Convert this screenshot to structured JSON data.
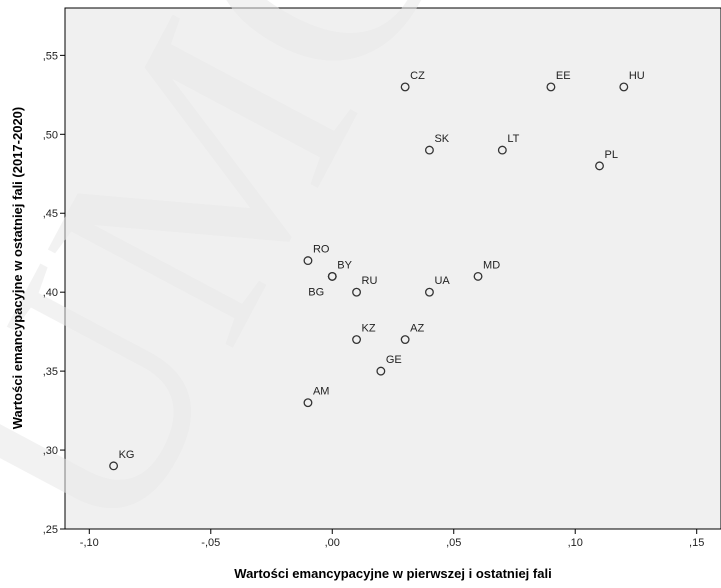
{
  "chart_data": {
    "type": "scatter",
    "xlabel": "Wartości emancypacyjne w pierwszej i ostatniej fali",
    "ylabel": "Wartości emancypacyjne w ostatniej fali (2017-2020)",
    "xlim": [
      -0.11,
      0.16
    ],
    "ylim": [
      0.25,
      0.58
    ],
    "x_ticks": [
      -0.1,
      -0.05,
      0.0,
      0.05,
      0.1,
      0.15
    ],
    "x_tick_labels": [
      "-,10",
      "-,05",
      ",00",
      ",05",
      ",10",
      ",15"
    ],
    "y_ticks": [
      0.25,
      0.3,
      0.35,
      0.4,
      0.45,
      0.5,
      0.55
    ],
    "y_tick_labels": [
      ",25",
      ",30",
      ",35",
      ",40",
      ",45",
      ",50",
      ",55"
    ],
    "grid": false,
    "background_color": "#f0f0f0",
    "marker_color": "#333333",
    "watermark_text": "UMCS",
    "points": [
      {
        "label": "KG",
        "x": -0.09,
        "y": 0.29
      },
      {
        "label": "AM",
        "x": -0.01,
        "y": 0.33
      },
      {
        "label": "RO",
        "x": -0.01,
        "y": 0.42
      },
      {
        "label": "BY",
        "x": 0.0,
        "y": 0.41
      },
      {
        "label": "BG",
        "x": 0.0,
        "y": 0.41
      },
      {
        "label": "RU",
        "x": 0.01,
        "y": 0.4
      },
      {
        "label": "KZ",
        "x": 0.01,
        "y": 0.37
      },
      {
        "label": "GE",
        "x": 0.02,
        "y": 0.35
      },
      {
        "label": "AZ",
        "x": 0.03,
        "y": 0.37
      },
      {
        "label": "CZ",
        "x": 0.03,
        "y": 0.53
      },
      {
        "label": "SK",
        "x": 0.04,
        "y": 0.49
      },
      {
        "label": "UA",
        "x": 0.04,
        "y": 0.4
      },
      {
        "label": "MD",
        "x": 0.06,
        "y": 0.41
      },
      {
        "label": "LT",
        "x": 0.07,
        "y": 0.49
      },
      {
        "label": "EE",
        "x": 0.09,
        "y": 0.53
      },
      {
        "label": "PL",
        "x": 0.11,
        "y": 0.48
      },
      {
        "label": "HU",
        "x": 0.12,
        "y": 0.53
      }
    ]
  }
}
